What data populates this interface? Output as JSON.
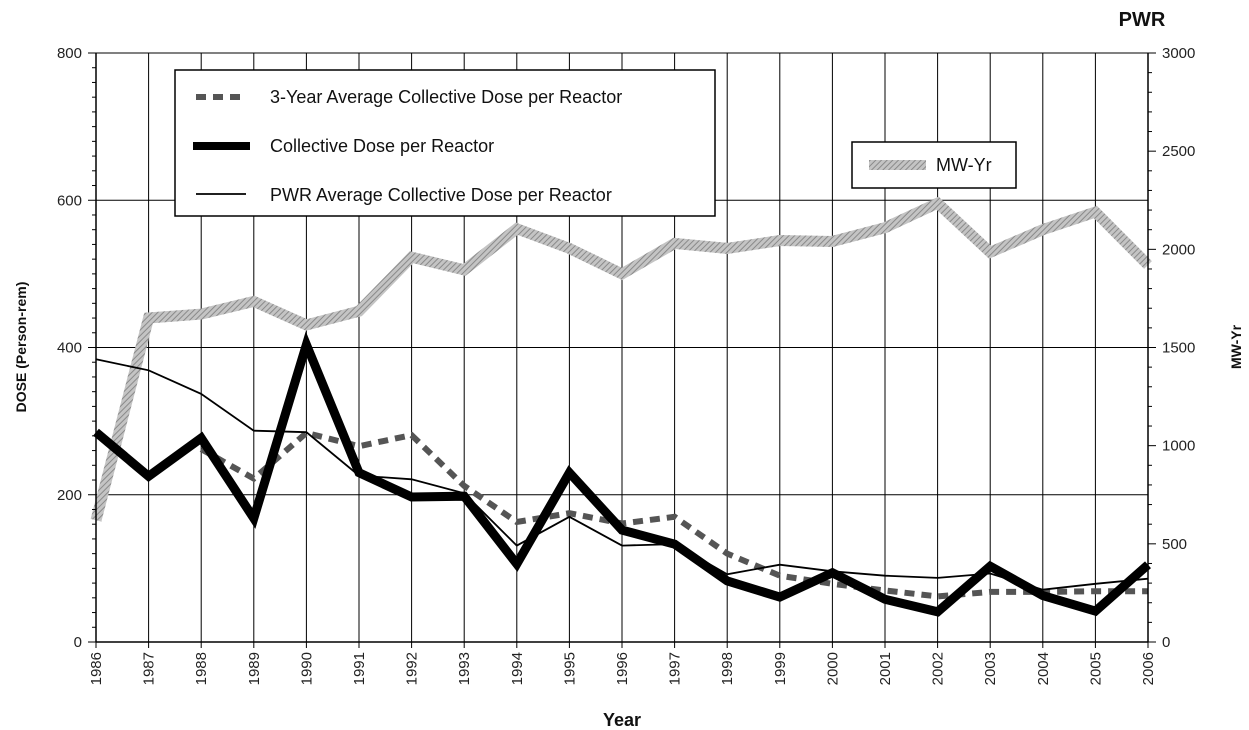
{
  "chart_data": {
    "type": "line",
    "title": "PWR",
    "xlabel": "Year",
    "ylabel": "DOSE (Person-rem)",
    "y2label": "MW-Yr",
    "x": [
      "1986",
      "1987",
      "1988",
      "1989",
      "1990",
      "1991",
      "1992",
      "1993",
      "1994",
      "1995",
      "1996",
      "1997",
      "1998",
      "1999",
      "2000",
      "2001",
      "2002",
      "2003",
      "2004",
      "2005",
      "2006"
    ],
    "ylim": [
      0,
      800
    ],
    "y2lim": [
      0,
      3000
    ],
    "yticks": [
      0,
      200,
      400,
      600,
      800
    ],
    "y2ticks": [
      0,
      500,
      1000,
      1500,
      2000,
      2500,
      3000
    ],
    "grid": true,
    "series": [
      {
        "name": "3-Year Average Collective Dose per Reactor",
        "axis": "left",
        "style": "dashed",
        "color": "#555555",
        "values": [
          null,
          null,
          262,
          222,
          284,
          266,
          281,
          212,
          163,
          175,
          161,
          170,
          120,
          90,
          79,
          70,
          62,
          68,
          68,
          69,
          69
        ]
      },
      {
        "name": "Collective Dose per Reactor",
        "axis": "left",
        "style": "thick",
        "color": "#000000",
        "values": [
          285,
          225,
          277,
          168,
          404,
          230,
          197,
          198,
          106,
          230,
          152,
          133,
          83,
          61,
          94,
          58,
          41,
          103,
          63,
          42,
          105
        ]
      },
      {
        "name": "PWR Average Collective Dose per Reactor",
        "axis": "left",
        "style": "thin",
        "color": "#000000",
        "values": [
          384,
          369,
          337,
          287,
          285,
          226,
          221,
          202,
          131,
          170,
          131,
          133,
          92,
          105,
          96,
          90,
          87,
          93,
          71,
          79,
          86
        ]
      },
      {
        "name": "MW-Yr",
        "axis": "right",
        "style": "hatched",
        "color": "#aaaaaa",
        "values": [
          620,
          1650,
          1670,
          1735,
          1615,
          1685,
          1960,
          1895,
          2105,
          2005,
          1875,
          2030,
          2005,
          2045,
          2040,
          2110,
          2235,
          1985,
          2100,
          2190,
          1920
        ]
      }
    ],
    "legend": {
      "entries": [
        "3-Year Average Collective Dose per Reactor",
        "Collective Dose per Reactor",
        "PWR Average Collective Dose per Reactor"
      ],
      "position": "top-left"
    },
    "legend2": {
      "entries": [
        "MW-Yr"
      ],
      "position": "top-right"
    }
  }
}
